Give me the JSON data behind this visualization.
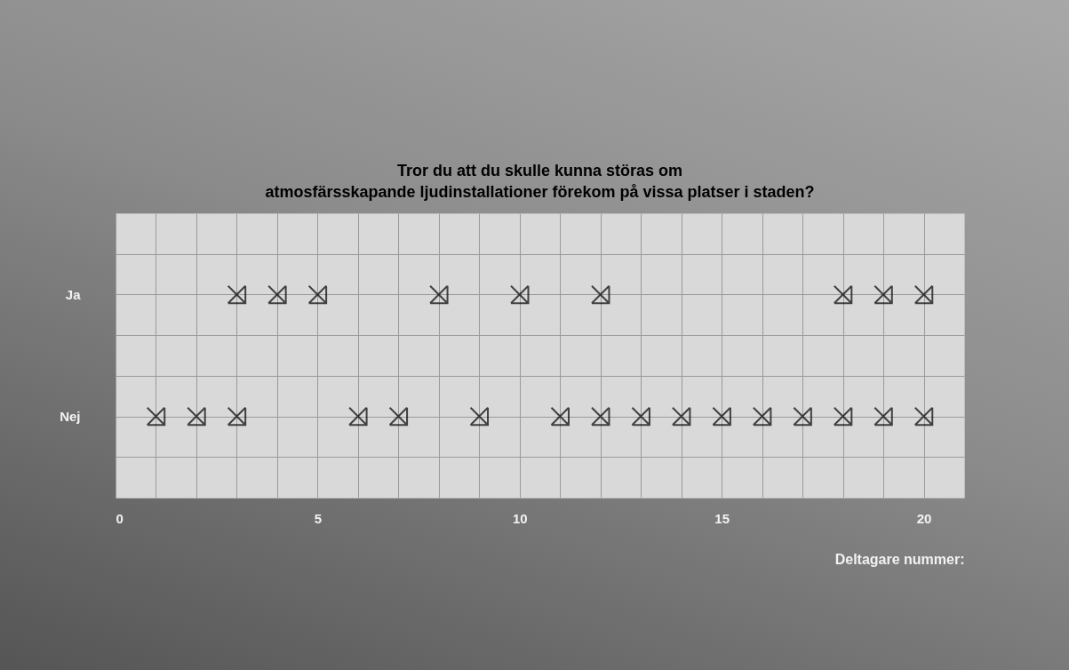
{
  "chart_data": {
    "type": "scatter",
    "orientation": "horizontal",
    "title": "Tror du att du skulle kunna störas om\natmosfärsskapande ljudinstallationer förekom på vissa platser i staden?",
    "xlabel": "Deltagare nummer:",
    "categories": [
      "Ja",
      "Nej"
    ],
    "xlim": [
      0,
      21
    ],
    "xticks": [
      0,
      {
        "value": 1,
        "label": null
      },
      {
        "value": 2,
        "label": null
      },
      {
        "value": 3,
        "label": null
      },
      {
        "value": 4,
        "label": null
      },
      5,
      {
        "value": 6,
        "label": null
      },
      {
        "value": 7,
        "label": null
      },
      {
        "value": 8,
        "label": null
      },
      {
        "value": 9,
        "label": null
      },
      10,
      {
        "value": 11,
        "label": null
      },
      {
        "value": 12,
        "label": null
      },
      {
        "value": 13,
        "label": null
      },
      {
        "value": 14,
        "label": null
      },
      15,
      {
        "value": 16,
        "label": null
      },
      {
        "value": 17,
        "label": null
      },
      {
        "value": 18,
        "label": null
      },
      {
        "value": 19,
        "label": null
      },
      20
    ],
    "grid": true,
    "marker": "cross",
    "series": [
      {
        "color": "#000000",
        "x": [
          "Ja",
          "Ja",
          "Ja",
          "Ja",
          "Ja",
          "Ja",
          "Ja",
          "Ja",
          "Ja",
          "Nej",
          "Nej",
          "Nej",
          "Nej",
          "Nej",
          "Nej",
          "Nej",
          "Nej",
          "Nej",
          "Nej",
          "Nej",
          "Nej",
          "Nej",
          "Nej",
          "Nej",
          "Nej"
        ],
        "values": [
          3,
          4,
          5,
          8,
          10,
          12,
          18,
          19,
          20,
          1,
          2,
          3,
          6,
          7,
          9,
          11,
          12,
          13,
          14,
          15,
          16,
          17,
          18,
          19,
          20
        ]
      }
    ]
  }
}
